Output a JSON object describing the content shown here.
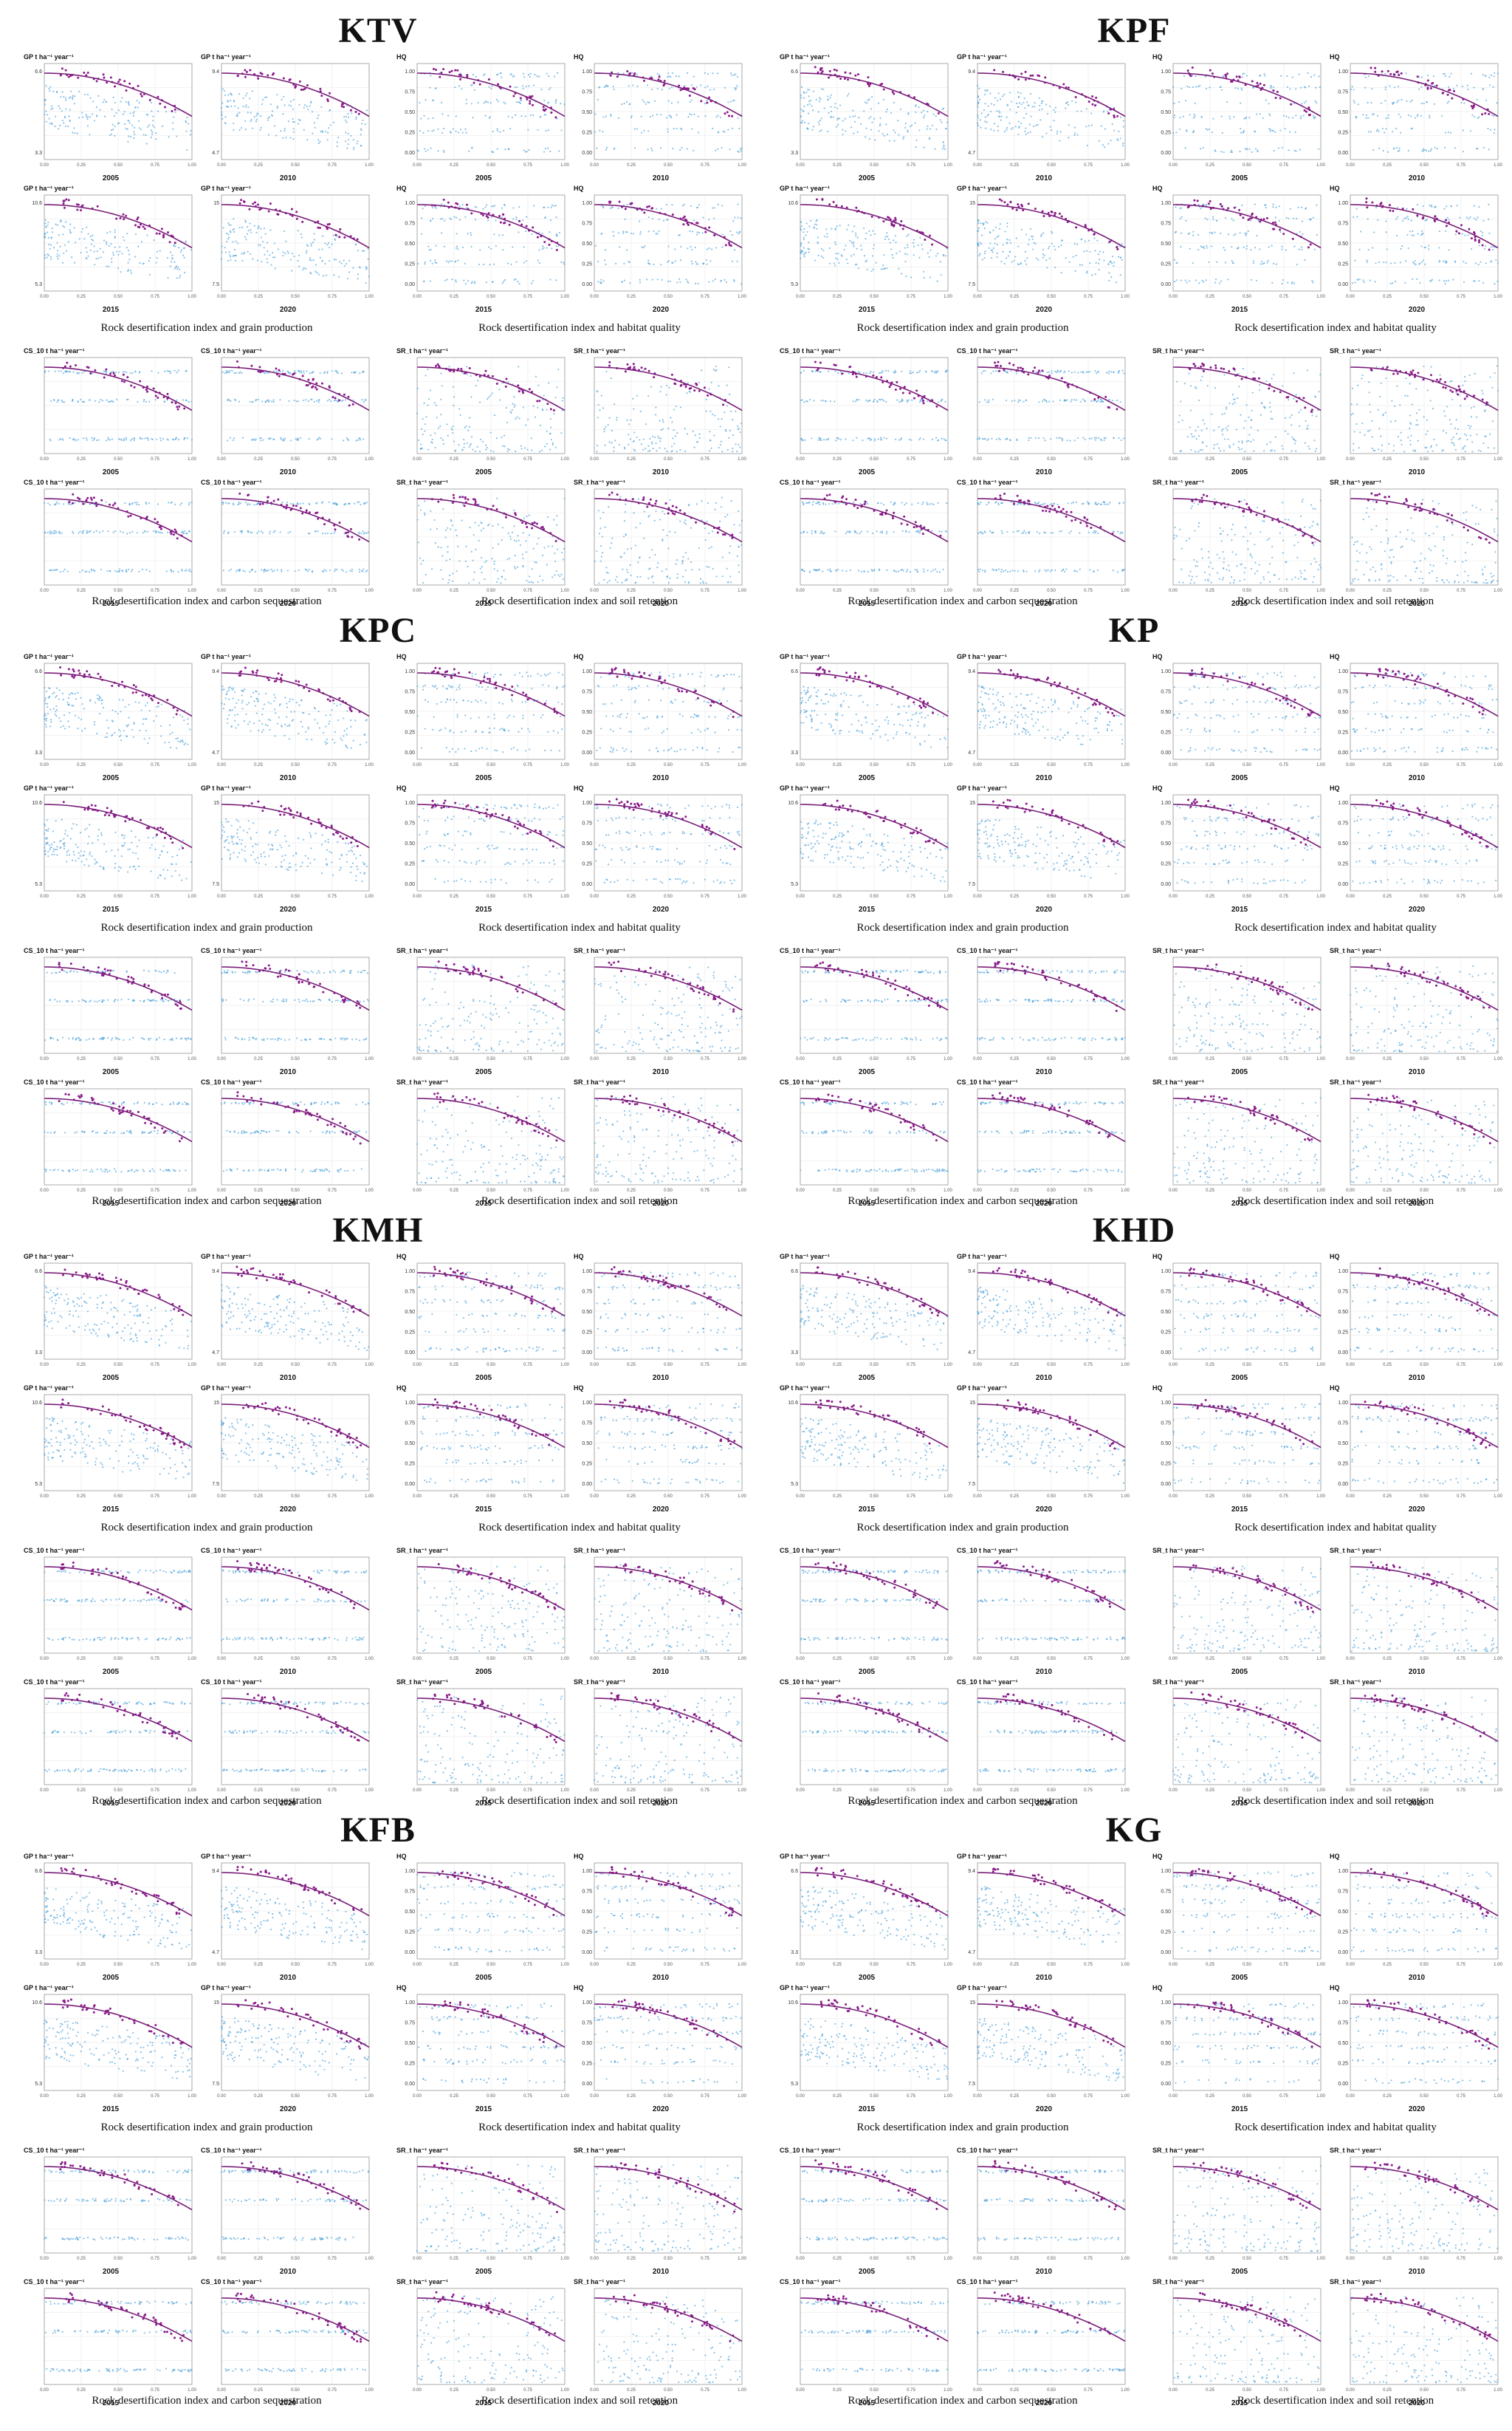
{
  "regions": [
    {
      "title": "KTV",
      "col": 0,
      "row": 0
    },
    {
      "title": "KPF",
      "col": 1,
      "row": 0
    },
    {
      "title": "KPC",
      "col": 0,
      "row": 1
    },
    {
      "title": "KP",
      "col": 1,
      "row": 1
    },
    {
      "title": "KMH",
      "col": 0,
      "row": 2
    },
    {
      "title": "KHD",
      "col": 1,
      "row": 2
    },
    {
      "title": "KFB",
      "col": 0,
      "row": 3
    },
    {
      "title": "KG",
      "col": 1,
      "row": 3
    }
  ],
  "group_captions": [
    "Rock desertification index and grain production",
    "Rock desertification index and habitat quality",
    "Rock desertification index and carbon sequestration",
    "Rock desertification index and soil retention"
  ],
  "panel_labels": {
    "GP": "GP t ha⁻¹ year⁻¹",
    "HQ": "HQ",
    "CS": "CS_10 t ha⁻¹ year⁻¹",
    "SR": "SR_t ha⁻¹ year⁻¹"
  },
  "years": [
    "2005",
    "2010",
    "2015",
    "2020"
  ],
  "x_ticks": [
    "0.00",
    "0.25",
    "0.50",
    "0.75",
    "1.00"
  ],
  "gp_ticks": [
    [
      "6.6",
      "3.3"
    ],
    [
      "9.4",
      "4.7"
    ],
    [
      "10.6",
      "5.3"
    ],
    [
      "15",
      "7.5"
    ]
  ],
  "hq_ticks": [
    "1.00",
    "0.75",
    "0.50",
    "0.25",
    "0.00"
  ],
  "colors": {
    "points": "#4a9fd8",
    "highlight": "#8b1a8b",
    "fit": "#7a1f7a",
    "grid": "#e6e6e6",
    "frame": "#999999"
  },
  "chart_data": {
    "type": "scatter",
    "xlabel": "",
    "xlim": [
      0,
      1
    ],
    "variables": [
      "GP",
      "HQ",
      "CS",
      "SR"
    ],
    "fit_type": "quadratic"
  }
}
